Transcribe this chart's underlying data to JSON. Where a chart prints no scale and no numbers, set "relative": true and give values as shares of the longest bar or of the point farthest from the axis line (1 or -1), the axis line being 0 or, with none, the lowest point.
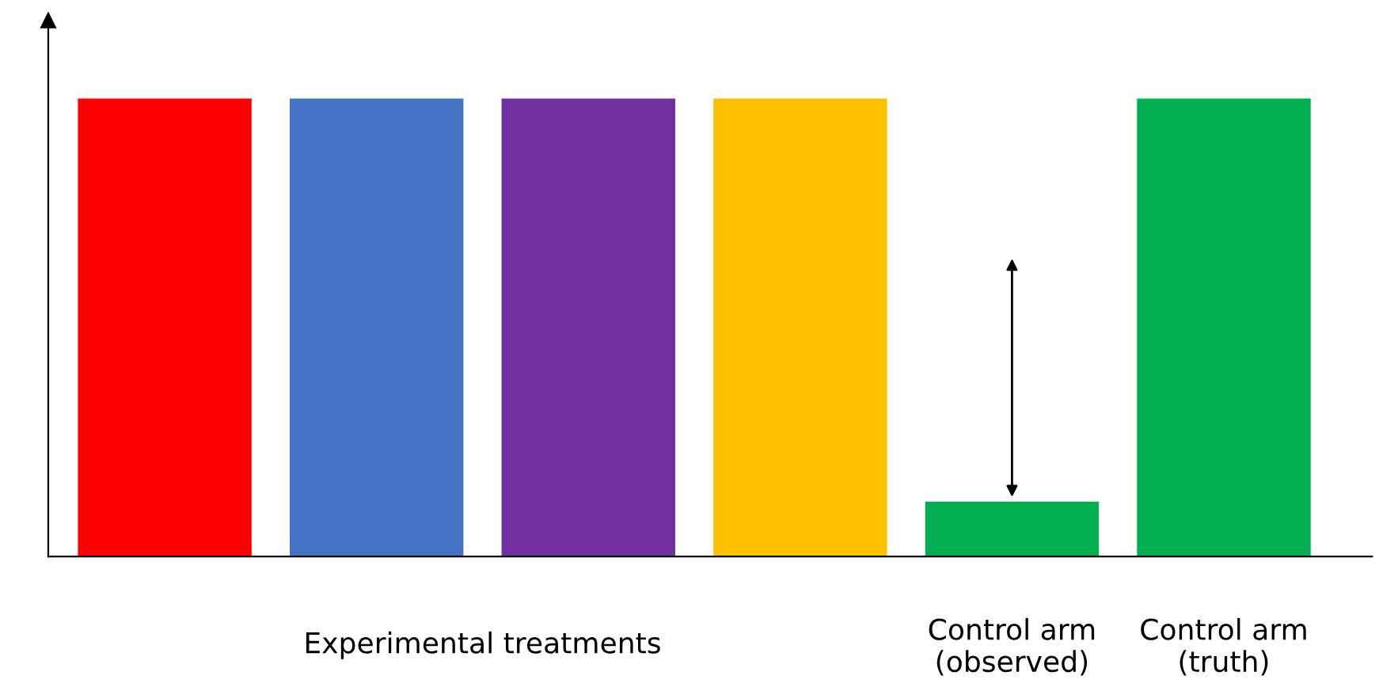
{
  "chart_data": {
    "type": "bar",
    "relative": true,
    "categories": [
      null,
      null,
      null,
      null,
      "Control arm\n(observed)",
      "Control arm\n(truth)"
    ],
    "values": [
      1,
      1,
      1,
      1,
      0.12,
      1
    ],
    "colors": [
      "#ff0000",
      "#4472c4",
      "#7030a0",
      "#ffc000",
      "#00b050",
      "#00b050"
    ],
    "annotations": [
      "Experimental treatments"
    ],
    "grid": false,
    "legend": false
  }
}
